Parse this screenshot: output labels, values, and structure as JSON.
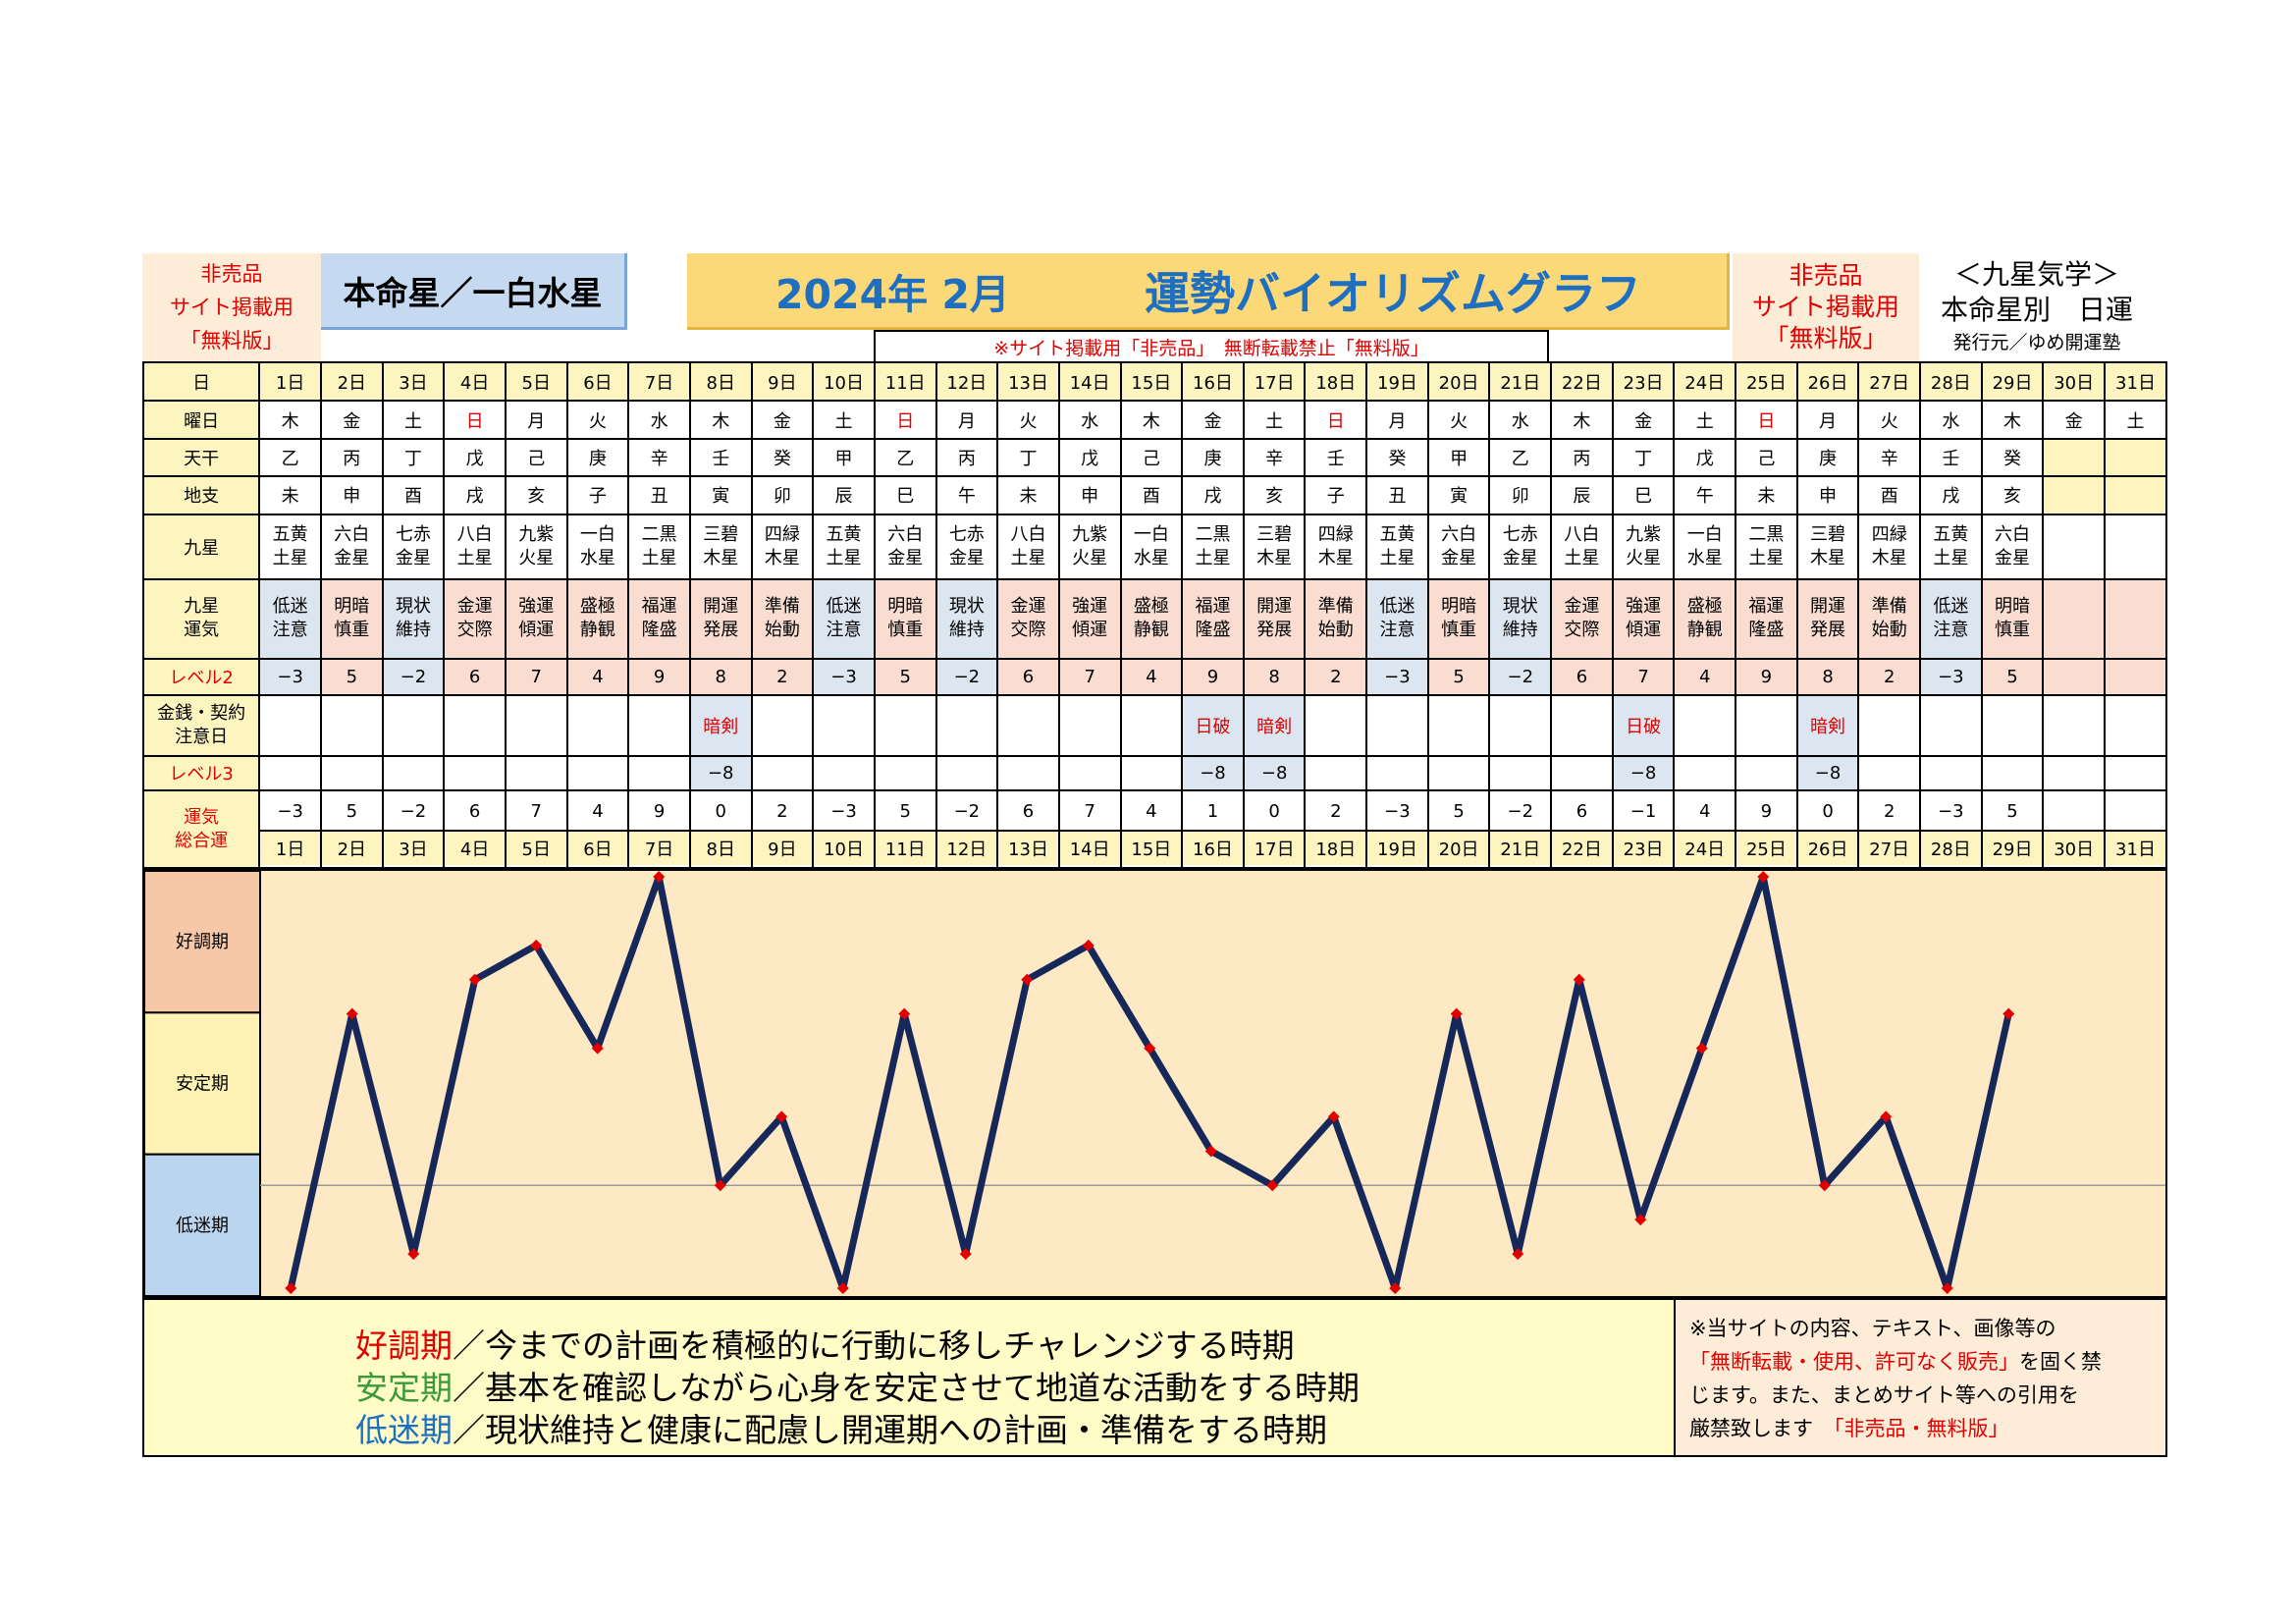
{
  "header": {
    "left_note": [
      "非売品",
      "サイト掲載用",
      "「無料版」"
    ],
    "honmei": "本命星／一白水星",
    "title_year": "2024年 2月",
    "title_main": "運勢バイオリズムグラフ",
    "right_note": [
      "非売品",
      "サイト掲載用",
      "「無料版」"
    ],
    "kyusei_title": "＜九星気学＞",
    "kyusei_sub": "本命星別　日運",
    "publisher": "発行元／ゆめ開運塾",
    "notice": "※サイト掲載用「非売品」　無断転載禁止「無料版」"
  },
  "row_labels": {
    "day": "日",
    "weekday": "曜日",
    "tenkan": "天干",
    "chishi": "地支",
    "kyusei": "九星",
    "kyusei_unki": [
      "九星",
      "運気"
    ],
    "level2": "レベル2",
    "money": [
      "金銭・契約",
      "注意日"
    ],
    "level3": "レベル3",
    "unki_total": [
      "運気",
      "総合運"
    ]
  },
  "days": [
    "1日",
    "2日",
    "3日",
    "4日",
    "5日",
    "6日",
    "7日",
    "8日",
    "9日",
    "10日",
    "11日",
    "12日",
    "13日",
    "14日",
    "15日",
    "16日",
    "17日",
    "18日",
    "19日",
    "20日",
    "21日",
    "22日",
    "23日",
    "24日",
    "25日",
    "26日",
    "27日",
    "28日",
    "29日",
    "30日",
    "31日"
  ],
  "weekdays": [
    "木",
    "金",
    "土",
    "日",
    "月",
    "火",
    "水",
    "木",
    "金",
    "土",
    "日",
    "月",
    "火",
    "水",
    "木",
    "金",
    "土",
    "日",
    "月",
    "火",
    "水",
    "木",
    "金",
    "土",
    "日",
    "月",
    "火",
    "水",
    "木",
    "金",
    "土"
  ],
  "sunday_days": [
    4,
    11,
    18,
    25
  ],
  "tenkan": [
    "乙",
    "丙",
    "丁",
    "戊",
    "己",
    "庚",
    "辛",
    "壬",
    "癸",
    "甲",
    "乙",
    "丙",
    "丁",
    "戊",
    "己",
    "庚",
    "辛",
    "壬",
    "癸",
    "甲",
    "乙",
    "丙",
    "丁",
    "戊",
    "己",
    "庚",
    "辛",
    "壬",
    "癸",
    "",
    ""
  ],
  "chishi": [
    "未",
    "申",
    "酉",
    "戌",
    "亥",
    "子",
    "丑",
    "寅",
    "卯",
    "辰",
    "巳",
    "午",
    "未",
    "申",
    "酉",
    "戌",
    "亥",
    "子",
    "丑",
    "寅",
    "卯",
    "辰",
    "巳",
    "午",
    "未",
    "申",
    "酉",
    "戌",
    "亥",
    "",
    ""
  ],
  "kyusei": [
    [
      "五黄",
      "土星"
    ],
    [
      "六白",
      "金星"
    ],
    [
      "七赤",
      "金星"
    ],
    [
      "八白",
      "土星"
    ],
    [
      "九紫",
      "火星"
    ],
    [
      "一白",
      "水星"
    ],
    [
      "二黒",
      "土星"
    ],
    [
      "三碧",
      "木星"
    ],
    [
      "四緑",
      "木星"
    ],
    [
      "五黄",
      "土星"
    ],
    [
      "六白",
      "金星"
    ],
    [
      "七赤",
      "金星"
    ],
    [
      "八白",
      "土星"
    ],
    [
      "九紫",
      "火星"
    ],
    [
      "一白",
      "水星"
    ],
    [
      "二黒",
      "土星"
    ],
    [
      "三碧",
      "木星"
    ],
    [
      "四緑",
      "木星"
    ],
    [
      "五黄",
      "土星"
    ],
    [
      "六白",
      "金星"
    ],
    [
      "七赤",
      "金星"
    ],
    [
      "八白",
      "土星"
    ],
    [
      "九紫",
      "火星"
    ],
    [
      "一白",
      "水星"
    ],
    [
      "二黒",
      "土星"
    ],
    [
      "三碧",
      "木星"
    ],
    [
      "四緑",
      "木星"
    ],
    [
      "五黄",
      "土星"
    ],
    [
      "六白",
      "金星"
    ],
    [
      "",
      ""
    ],
    [
      "",
      ""
    ]
  ],
  "unki": [
    [
      "低迷",
      "注意"
    ],
    [
      "明暗",
      "慎重"
    ],
    [
      "現状",
      "維持"
    ],
    [
      "金運",
      "交際"
    ],
    [
      "強運",
      "傾運"
    ],
    [
      "盛極",
      "静観"
    ],
    [
      "福運",
      "隆盛"
    ],
    [
      "開運",
      "発展"
    ],
    [
      "準備",
      "始動"
    ],
    [
      "低迷",
      "注意"
    ],
    [
      "明暗",
      "慎重"
    ],
    [
      "現状",
      "維持"
    ],
    [
      "金運",
      "交際"
    ],
    [
      "強運",
      "傾運"
    ],
    [
      "盛極",
      "静観"
    ],
    [
      "福運",
      "隆盛"
    ],
    [
      "開運",
      "発展"
    ],
    [
      "準備",
      "始動"
    ],
    [
      "低迷",
      "注意"
    ],
    [
      "明暗",
      "慎重"
    ],
    [
      "現状",
      "維持"
    ],
    [
      "金運",
      "交際"
    ],
    [
      "強運",
      "傾運"
    ],
    [
      "盛極",
      "静観"
    ],
    [
      "福運",
      "隆盛"
    ],
    [
      "開運",
      "発展"
    ],
    [
      "準備",
      "始動"
    ],
    [
      "低迷",
      "注意"
    ],
    [
      "明暗",
      "慎重"
    ],
    [
      "",
      ""
    ],
    [
      "",
      ""
    ]
  ],
  "level2": [
    "−3",
    "5",
    "−2",
    "6",
    "7",
    "4",
    "9",
    "8",
    "2",
    "−3",
    "5",
    "−2",
    "6",
    "7",
    "4",
    "9",
    "8",
    "2",
    "−3",
    "5",
    "−2",
    "6",
    "7",
    "4",
    "9",
    "8",
    "2",
    "−3",
    "5",
    "",
    ""
  ],
  "money": [
    "",
    "",
    "",
    "",
    "",
    "",
    "",
    "暗剣",
    "",
    "",
    "",
    "",
    "",
    "",
    "",
    "日破",
    "暗剣",
    "",
    "",
    "",
    "",
    "",
    "日破",
    "",
    "",
    "暗剣",
    "",
    "",
    "",
    "",
    ""
  ],
  "level3": [
    "",
    "",
    "",
    "",
    "",
    "",
    "",
    "−8",
    "",
    "",
    "",
    "",
    "",
    "",
    "",
    "−8",
    "−8",
    "",
    "",
    "",
    "",
    "",
    "−8",
    "",
    "",
    "−8",
    "",
    "",
    "",
    "",
    ""
  ],
  "total": [
    "−3",
    "5",
    "−2",
    "6",
    "7",
    "4",
    "9",
    "0",
    "2",
    "−3",
    "5",
    "−2",
    "6",
    "7",
    "4",
    "1",
    "0",
    "2",
    "−3",
    "5",
    "−2",
    "6",
    "−1",
    "4",
    "9",
    "0",
    "2",
    "−3",
    "5",
    "",
    ""
  ],
  "colors": {
    "cream": "#fdf5c0",
    "blue_cell": "#dce6f1",
    "pink_cell": "#f9ddd0",
    "chart_bg": "#fde9c4",
    "line": "#16285a",
    "marker": "#e00000",
    "band_good": "#f6c8a8",
    "band_stable": "#fdf2b4",
    "band_low": "#bcd5ee"
  },
  "chart_data": {
    "type": "line",
    "x": [
      1,
      2,
      3,
      4,
      5,
      6,
      7,
      8,
      9,
      10,
      11,
      12,
      13,
      14,
      15,
      16,
      17,
      18,
      19,
      20,
      21,
      22,
      23,
      24,
      25,
      26,
      27,
      28,
      29
    ],
    "series": [
      {
        "values": [
          -3,
          5,
          -2,
          6,
          7,
          4,
          9,
          0,
          2,
          -3,
          5,
          -2,
          6,
          7,
          4,
          1,
          0,
          2,
          -3,
          5,
          -2,
          6,
          -1,
          4,
          9,
          0,
          2,
          -3,
          5
        ]
      }
    ],
    "ylim": [
      -3,
      9
    ],
    "bands": [
      "好調期",
      "安定期",
      "低迷期"
    ],
    "reference_line": 0,
    "marker_shape": "diamond"
  },
  "legend": {
    "lines": [
      {
        "term": "好調期",
        "text": "／今までの計画を積極的に行動に移しチャレンジする時期"
      },
      {
        "term": "安定期",
        "text": "／基本を確認しながら心身を安定させて地道な活動をする時期"
      },
      {
        "term": "低迷期",
        "text": "／現状維持と健康に配慮し開運期への計画・準備をする時期"
      }
    ]
  },
  "copyright": {
    "l1": "※当サイトの内容、テキスト、画像等の",
    "l2_red": "「無断転載・使用、許可なく販売」",
    "l2_rest": "を固く禁",
    "l3": "じます。また、まとめサイト等への引用を",
    "l4": "厳禁致します",
    "l4_red": "「非売品・無料版」"
  }
}
